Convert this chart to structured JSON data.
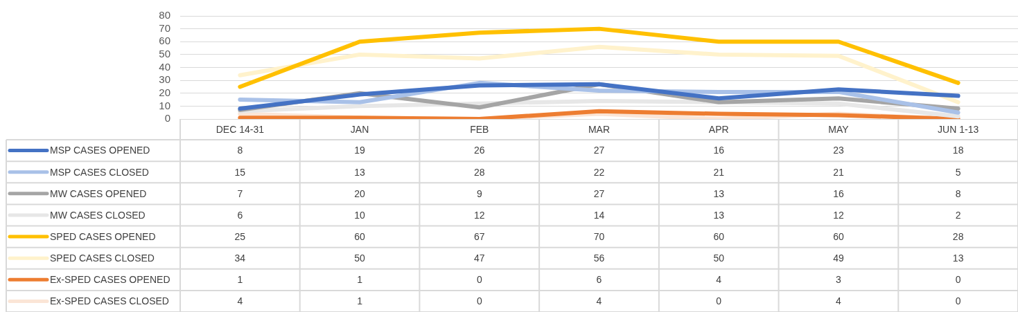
{
  "chart_data": {
    "type": "line",
    "categories": [
      "DEC 14-31",
      "JAN",
      "FEB",
      "MAR",
      "APR",
      "MAY",
      "JUN 1-13"
    ],
    "series": [
      {
        "name": "MSP CASES OPENED",
        "color": "#4472c4",
        "values": [
          8,
          19,
          26,
          27,
          16,
          23,
          18
        ]
      },
      {
        "name": "MSP CASES CLOSED",
        "color": "#a9c1e8",
        "values": [
          15,
          13,
          28,
          22,
          21,
          21,
          5
        ]
      },
      {
        "name": "MW CASES OPENED",
        "color": "#a5a5a5",
        "values": [
          7,
          20,
          9,
          27,
          13,
          16,
          8
        ]
      },
      {
        "name": "MW CASES CLOSED",
        "color": "#e7e7e7",
        "values": [
          6,
          10,
          12,
          14,
          13,
          12,
          2
        ]
      },
      {
        "name": "SPED CASES OPENED",
        "color": "#ffc000",
        "values": [
          25,
          60,
          67,
          70,
          60,
          60,
          28
        ]
      },
      {
        "name": "SPED CASES CLOSED",
        "color": "#fff2cc",
        "values": [
          34,
          50,
          47,
          56,
          50,
          49,
          13
        ]
      },
      {
        "name": "Ex-SPED CASES OPENED",
        "color": "#ed7d31",
        "values": [
          1,
          1,
          0,
          6,
          4,
          3,
          0
        ]
      },
      {
        "name": "Ex-SPED CASES CLOSED",
        "color": "#fbe5d6",
        "values": [
          4,
          1,
          0,
          4,
          0,
          4,
          0
        ]
      }
    ],
    "ylim": [
      0,
      80
    ],
    "yticks": [
      0,
      10,
      20,
      30,
      40,
      50,
      60,
      70,
      80
    ],
    "grid": "y",
    "legend": "bottom",
    "data_labels": true,
    "marker": "none",
    "line_style": "solid"
  }
}
